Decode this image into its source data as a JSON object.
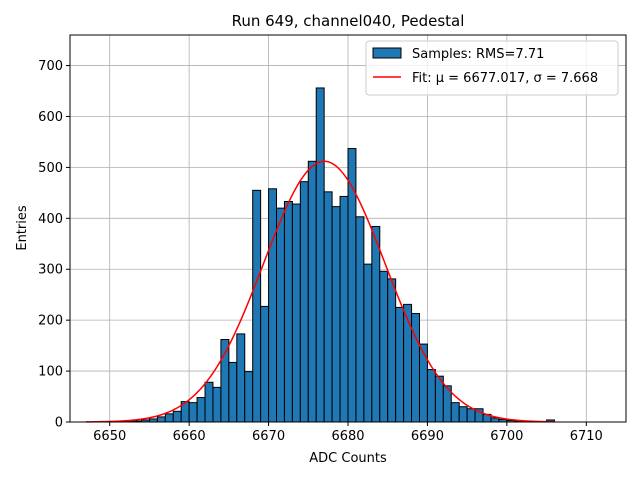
{
  "chart_data": {
    "type": "bar",
    "title": "Run 649, channel040, Pedestal",
    "xlabel": "ADC Counts",
    "ylabel": "Entries",
    "xlim": [
      6645,
      6715
    ],
    "ylim": [
      0,
      760
    ],
    "xticks": [
      6650,
      6660,
      6670,
      6680,
      6690,
      6700,
      6710
    ],
    "yticks": [
      0,
      100,
      200,
      300,
      400,
      500,
      600,
      700
    ],
    "grid": true,
    "legend_position": "top-right",
    "bin_width": 1,
    "bins_start": [
      6649,
      6650,
      6651,
      6652,
      6653,
      6654,
      6655,
      6656,
      6657,
      6658,
      6659,
      6660,
      6661,
      6662,
      6663,
      6664,
      6665,
      6666,
      6667,
      6668,
      6669,
      6670,
      6671,
      6672,
      6673,
      6674,
      6675,
      6676,
      6677,
      6678,
      6679,
      6680,
      6681,
      6682,
      6683,
      6684,
      6685,
      6686,
      6687,
      6688,
      6689,
      6690,
      6691,
      6692,
      6693,
      6694,
      6695,
      6696,
      6697,
      6698,
      6699,
      6700,
      6701,
      6702,
      6703,
      6704,
      6705
    ],
    "counts": [
      1,
      1,
      1,
      2,
      2,
      4,
      6,
      10,
      16,
      21,
      40,
      38,
      48,
      78,
      68,
      162,
      117,
      173,
      99,
      455,
      227,
      458,
      420,
      433,
      428,
      472,
      512,
      656,
      452,
      423,
      443,
      537,
      403,
      310,
      384,
      296,
      281,
      225,
      231,
      213,
      153,
      103,
      90,
      71,
      38,
      30,
      26,
      26,
      15,
      8,
      5,
      3,
      2,
      1,
      1,
      1,
      4
    ],
    "bar_color": "#1f77b4",
    "edge_color": "#000000",
    "series": [
      {
        "name": "Samples: RMS=7.71",
        "kind": "histogram",
        "color": "#1f77b4"
      },
      {
        "name": "Fit: μ = 6677.017, σ = 7.668",
        "kind": "gaussian-fit",
        "color": "#ff0000",
        "mu": 6677.017,
        "sigma": 7.668,
        "amplitude": 512,
        "x_range": [
          6647,
          6706
        ]
      }
    ]
  }
}
